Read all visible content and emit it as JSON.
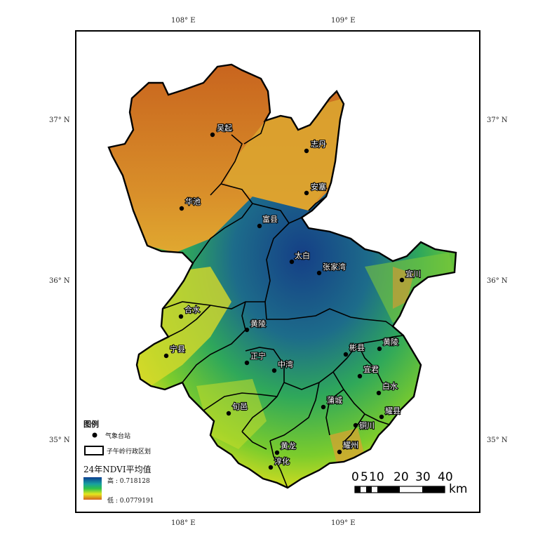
{
  "axes": {
    "top_labels": [
      "108° E",
      "109° E"
    ],
    "bottom_labels": [
      "108° E",
      "109° E"
    ],
    "left_labels": [
      "37° N",
      "36° N",
      "35° N"
    ],
    "right_labels": [
      "37° N",
      "36° N",
      "35° N"
    ]
  },
  "stations": [
    {
      "name": "吴起"
    },
    {
      "name": "志丹"
    },
    {
      "name": "安塞"
    },
    {
      "name": "华池"
    },
    {
      "name": "富县"
    },
    {
      "name": "太白"
    },
    {
      "name": "张家湾"
    },
    {
      "name": "宜川"
    },
    {
      "name": "合水"
    },
    {
      "name": "黄陵"
    },
    {
      "name": "宁县"
    },
    {
      "name": "正宁"
    },
    {
      "name": "中湾"
    },
    {
      "name": "旬邑"
    },
    {
      "name": "淳化"
    },
    {
      "name": "耀州"
    },
    {
      "name": "宜君"
    },
    {
      "name": "黄陵"
    },
    {
      "name": "铜川"
    },
    {
      "name": "白水"
    },
    {
      "name": "蒲城"
    },
    {
      "name": "彬县"
    },
    {
      "name": "耀县"
    },
    {
      "name": "黄龙"
    }
  ],
  "legend": {
    "title": "图例",
    "station_label": "气象台站",
    "boundary_label": "子午岭行政区划",
    "ndvi_title": "24年NDVI平均值",
    "high_label": "高 : 0.718128",
    "low_label": "低 : 0.0779191",
    "colors": {
      "high": "#0b3d91",
      "mid": "#2ec14a",
      "mid2": "#e6e61e",
      "low": "#d2641e"
    }
  },
  "scale_bar": {
    "labels": [
      "0",
      "5",
      "10",
      "20",
      "30",
      "40"
    ],
    "unit": "km"
  }
}
